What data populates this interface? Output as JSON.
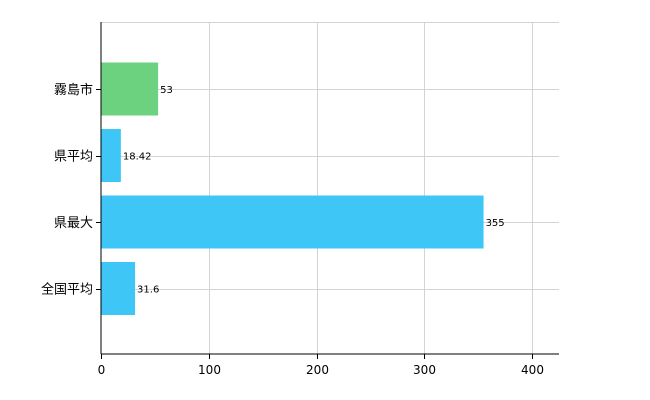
{
  "chart_data": {
    "type": "bar",
    "orientation": "horizontal",
    "categories": [
      "霧島市",
      "県平均",
      "県最大",
      "全国平均"
    ],
    "values": [
      53,
      18.42,
      355,
      31.6
    ],
    "data_labels": [
      "53",
      "18.42",
      "355",
      "31.6"
    ],
    "bar_colors": [
      "#6dd27f",
      "#3ec6f7",
      "#3ec6f7",
      "#3ec6f7"
    ],
    "xlim": [
      0,
      425
    ],
    "xticks": [
      0,
      100,
      200,
      300,
      400
    ],
    "xtick_labels": [
      "0",
      "100",
      "200",
      "300",
      "400"
    ],
    "grid": true,
    "title": "",
    "xlabel": "",
    "ylabel": ""
  }
}
